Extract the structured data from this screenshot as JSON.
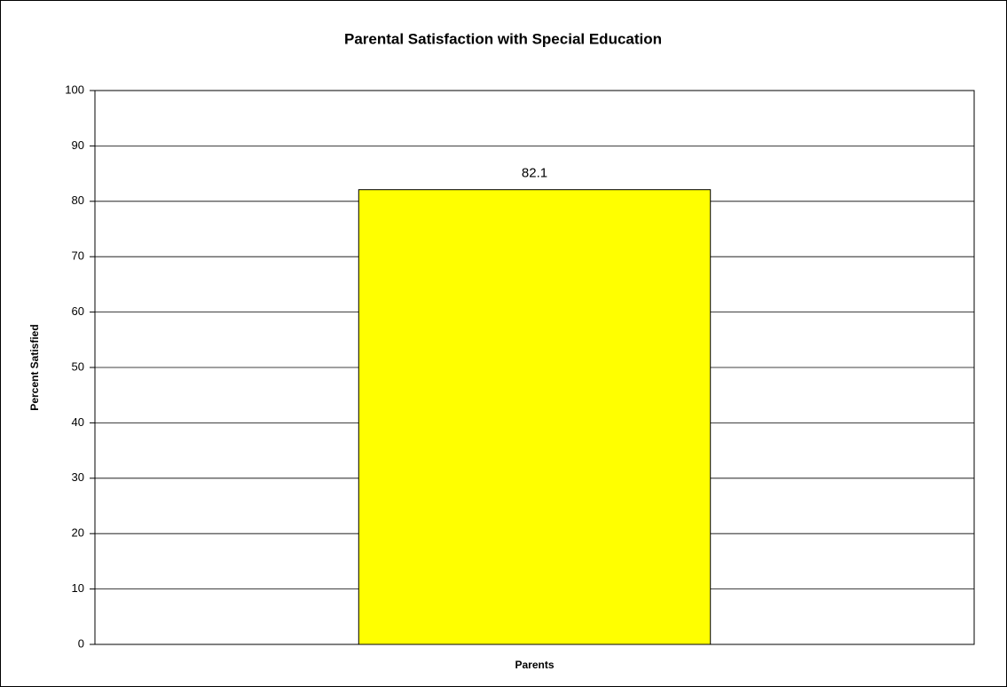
{
  "chart_data": {
    "type": "bar",
    "title": "Parental Satisfaction with Special Education",
    "y_label": "Percent Satisfied",
    "categories": [
      "Parents"
    ],
    "values": [
      82.1
    ],
    "color": "#ffff00",
    "ylim": [
      0,
      100
    ],
    "yticks": [
      0,
      10,
      20,
      30,
      40,
      50,
      60,
      70,
      80,
      90,
      100
    ],
    "grid": true
  }
}
